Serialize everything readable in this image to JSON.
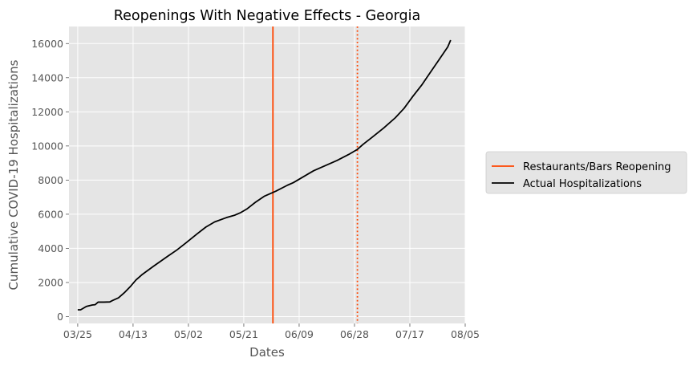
{
  "chart_data": {
    "type": "line",
    "title": "Reopenings With Negative Effects - Georgia",
    "xlabel": "Dates",
    "ylabel": "Cumulative COVID-19 Hospitalizations",
    "x_ticks": [
      "03/25",
      "04/13",
      "05/02",
      "05/21",
      "06/09",
      "06/28",
      "07/17",
      "08/05"
    ],
    "y_ticks": [
      "0",
      "2000",
      "4000",
      "6000",
      "8000",
      "10000",
      "12000",
      "14000",
      "16000"
    ],
    "xlim": [
      "2020-03-22",
      "2020-08-05"
    ],
    "ylim": [
      -400,
      17000
    ],
    "grid": true,
    "legend_position": "right, outside plot",
    "series": [
      {
        "name": "Actual Hospitalizations",
        "color": "#000000",
        "style": "solid",
        "points": [
          [
            "2020-03-25",
            400
          ],
          [
            "2020-03-26",
            400
          ],
          [
            "2020-03-27",
            500
          ],
          [
            "2020-03-28",
            600
          ],
          [
            "2020-03-30",
            680
          ],
          [
            "2020-03-31",
            700
          ],
          [
            "2020-04-01",
            850
          ],
          [
            "2020-04-03",
            850
          ],
          [
            "2020-04-05",
            860
          ],
          [
            "2020-04-06",
            950
          ],
          [
            "2020-04-08",
            1100
          ],
          [
            "2020-04-10",
            1400
          ],
          [
            "2020-04-12",
            1750
          ],
          [
            "2020-04-14",
            2150
          ],
          [
            "2020-04-16",
            2450
          ],
          [
            "2020-04-20",
            2950
          ],
          [
            "2020-04-25",
            3550
          ],
          [
            "2020-04-28",
            3900
          ],
          [
            "2020-05-01",
            4300
          ],
          [
            "2020-05-05",
            4850
          ],
          [
            "2020-05-08",
            5250
          ],
          [
            "2020-05-11",
            5550
          ],
          [
            "2020-05-15",
            5800
          ],
          [
            "2020-05-18",
            5950
          ],
          [
            "2020-05-20",
            6100
          ],
          [
            "2020-05-22",
            6300
          ],
          [
            "2020-05-25",
            6700
          ],
          [
            "2020-05-28",
            7050
          ],
          [
            "2020-06-01",
            7350
          ],
          [
            "2020-06-05",
            7700
          ],
          [
            "2020-06-07",
            7850
          ],
          [
            "2020-06-11",
            8250
          ],
          [
            "2020-06-14",
            8550
          ],
          [
            "2020-06-18",
            8850
          ],
          [
            "2020-06-22",
            9150
          ],
          [
            "2020-06-26",
            9500
          ],
          [
            "2020-06-29",
            9800
          ],
          [
            "2020-07-01",
            10100
          ],
          [
            "2020-07-04",
            10500
          ],
          [
            "2020-07-08",
            11050
          ],
          [
            "2020-07-12",
            11650
          ],
          [
            "2020-07-15",
            12200
          ],
          [
            "2020-07-18",
            12900
          ],
          [
            "2020-07-21",
            13550
          ],
          [
            "2020-07-24",
            14300
          ],
          [
            "2020-07-27",
            15050
          ],
          [
            "2020-07-30",
            15800
          ],
          [
            "2020-07-31",
            16200
          ]
        ]
      }
    ],
    "vlines": [
      {
        "name": "Restaurants/Bars Reopening",
        "date": "2020-05-31",
        "color": "#ff4500",
        "style": "solid",
        "in_legend": true
      },
      {
        "date": "2020-06-29",
        "color": "#ff4500",
        "style": "dotted",
        "in_legend": false
      }
    ],
    "legend": [
      {
        "label": "Restaurants/Bars Reopening",
        "color": "#ff4500"
      },
      {
        "label": "Actual Hospitalizations",
        "color": "#000000"
      }
    ]
  }
}
